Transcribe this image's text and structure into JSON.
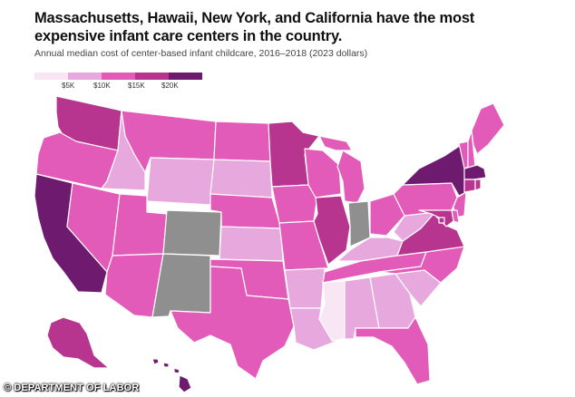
{
  "title": "Massachusetts, Hawaii, New York, and California have the most expensive infant care centers in the country.",
  "subtitle": "Annual median cost of center-based infant childcare, 2016–2018 (2023 dollars)",
  "legend": {
    "labels": [
      "$5K",
      "$10K",
      "$15K",
      "$20K"
    ],
    "colors": [
      "#f8e6f4",
      "#e7a8dd",
      "#e35bb8",
      "#b7348f",
      "#6e1a6e"
    ]
  },
  "colors": {
    "c1": "#f8e6f4",
    "c2": "#e7a8dd",
    "c3": "#e35bb8",
    "c4": "#b7348f",
    "c5": "#6e1a6e",
    "nodata": "#8f8f8f"
  },
  "states": {
    "WA": "c4",
    "OR": "c3",
    "CA": "c5",
    "NV": "c3",
    "ID": "c2",
    "MT": "c3",
    "WY": "c2",
    "UT": "c3",
    "AZ": "c3",
    "CO": "nodata",
    "NM": "nodata",
    "ND": "c3",
    "SD": "c2",
    "NE": "c3",
    "KS": "c2",
    "OK": "c3",
    "TX": "c3",
    "MN": "c4",
    "IA": "c3",
    "MO": "c3",
    "AR": "c2",
    "LA": "c2",
    "WI": "c3",
    "IL": "c4",
    "MI": "c3",
    "IN": "nodata",
    "OH": "c3",
    "KY": "c2",
    "TN": "c3",
    "MS": "c1",
    "AL": "c2",
    "GA": "c2",
    "FL": "c3",
    "SC": "c2",
    "NC": "c3",
    "VA": "c4",
    "WV": "c2",
    "PA": "c3",
    "NY": "c5",
    "VT": "c3",
    "NH": "c3",
    "ME": "c3",
    "MA": "c5",
    "CT": "c4",
    "RI": "c4",
    "NJ": "c3",
    "MD": "c4",
    "DE": "c3",
    "DC": "c4",
    "AK": "c4",
    "HI": "c5"
  },
  "credit": "© DEPARTMENT OF LABOR"
}
